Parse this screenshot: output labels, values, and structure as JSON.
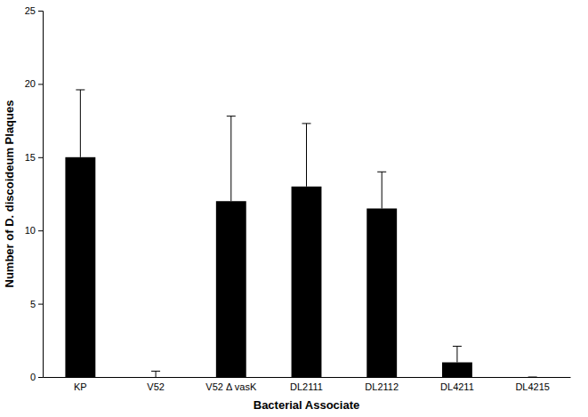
{
  "chart_data": {
    "type": "bar",
    "x_label": "Bacterial Associate",
    "y_label": "Number of D. discoideum Plaques",
    "categories": [
      "KP",
      "V52",
      "V52 Δ vasK",
      "DL2111",
      "DL2112",
      "DL4211",
      "DL4215"
    ],
    "values": [
      15,
      0,
      12,
      13,
      11.5,
      1,
      0
    ],
    "errors": [
      4.6,
      0.4,
      5.8,
      4.3,
      2.5,
      1.1,
      0
    ],
    "color": "#000000",
    "ylim": [
      0,
      25
    ],
    "yticks": [
      0,
      5,
      10,
      15,
      20,
      25
    ],
    "grid": false
  }
}
